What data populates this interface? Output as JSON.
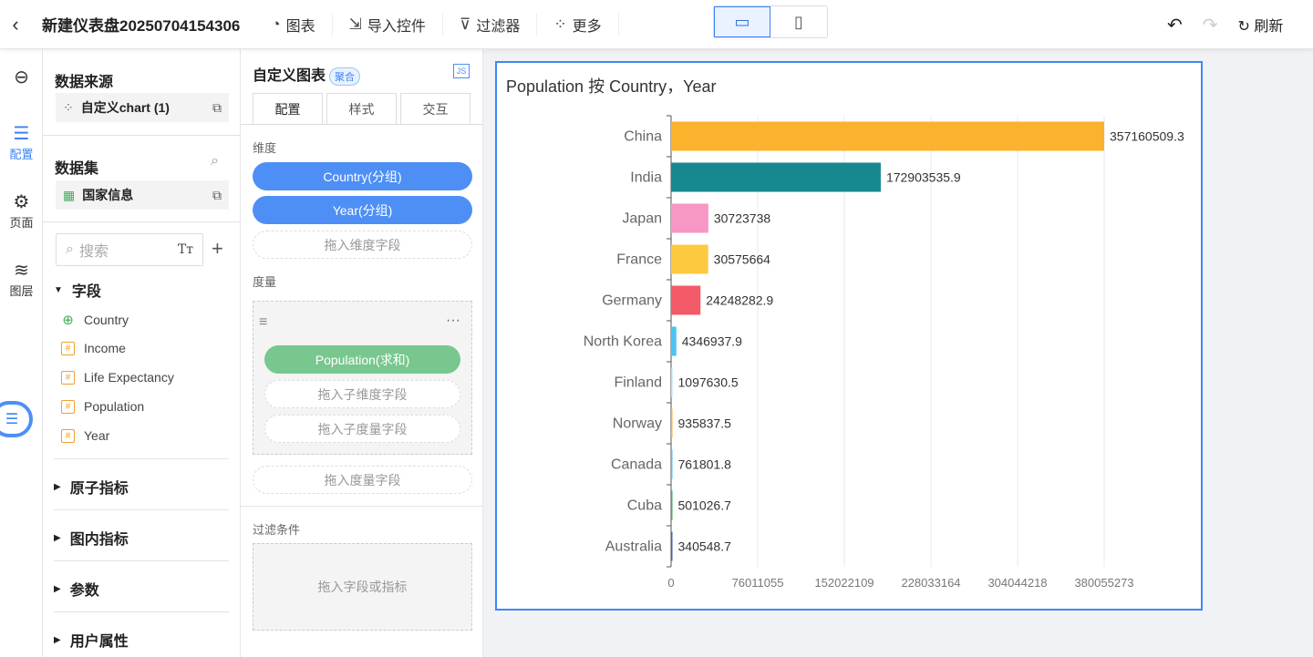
{
  "header": {
    "title": "新建仪表盘20250704154306",
    "buttons": [
      {
        "label": "图表",
        "icon": "chart-add-icon"
      },
      {
        "label": "导入控件",
        "icon": "import-icon"
      },
      {
        "label": "过滤器",
        "icon": "filter-add-icon"
      },
      {
        "label": "更多",
        "icon": "more-grid-icon"
      }
    ],
    "refresh_label": "刷新"
  },
  "rail": {
    "items": [
      {
        "label": "配置"
      },
      {
        "label": "页面"
      },
      {
        "label": "图层"
      }
    ]
  },
  "datasource": {
    "heading": "数据来源",
    "item": "自定义chart (1)"
  },
  "dataset": {
    "heading": "数据集",
    "item": "国家信息",
    "search_placeholder": "搜索",
    "fields_heading": "字段",
    "fields": [
      {
        "name": "Country",
        "type": "geo"
      },
      {
        "name": "Income",
        "type": "number"
      },
      {
        "name": "Life Expectancy",
        "type": "number"
      },
      {
        "name": "Population",
        "type": "number"
      },
      {
        "name": "Year",
        "type": "number"
      }
    ],
    "sections": [
      "原子指标",
      "图内指标",
      "参数",
      "用户属性"
    ]
  },
  "config": {
    "title": "自定义图表",
    "badge": "聚合",
    "js": "JS",
    "tabs": [
      "配置",
      "样式",
      "交互"
    ],
    "dimension_label": "维度",
    "dimensions": [
      "Country(分组)",
      "Year(分组)"
    ],
    "dimension_drop": "拖入维度字段",
    "measure_label": "度量",
    "measure": "Population(求和)",
    "sub_dim_drop": "拖入子维度字段",
    "sub_measure_drop": "拖入子度量字段",
    "measure_drop": "拖入度量字段",
    "filter_label": "过滤条件",
    "filter_drop": "拖入字段或指标"
  },
  "chart_data": {
    "type": "bar",
    "orientation": "horizontal",
    "title": "Population 按 Country，Year",
    "categories": [
      "China",
      "India",
      "Japan",
      "France",
      "Germany",
      "North Korea",
      "Finland",
      "Norway",
      "Canada",
      "Cuba",
      "Australia"
    ],
    "values": [
      357160509.3,
      172903535.9,
      30723738,
      30575664,
      24248282.9,
      4346937.9,
      1097630.5,
      935837.5,
      761801.8,
      501026.7,
      340548.7
    ],
    "labels": [
      "357160509.3",
      "172903535.9",
      "30723738",
      "30575664",
      "24248282.9",
      "4346937.9",
      "1097630.5",
      "935837.5",
      "761801.8",
      "501026.7",
      "340548.7"
    ],
    "colors": [
      "#fbb22c",
      "#17888f",
      "#f797c4",
      "#fdc93e",
      "#f45b69",
      "#4dc4f4",
      "#a7e0f7",
      "#fbb22c",
      "#4dc4f4",
      "#3fae5a",
      "#4a5fa8"
    ],
    "x_ticks": [
      "0",
      "76011055",
      "152022109",
      "228033164",
      "304044218",
      "380055273"
    ],
    "grid": true
  }
}
